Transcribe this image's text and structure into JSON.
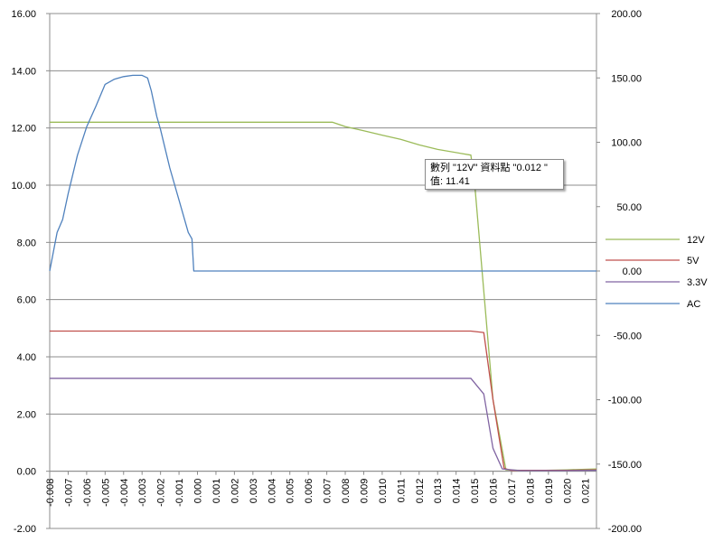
{
  "chart_data": {
    "type": "line",
    "x_ticks": [
      "-0.008",
      "-0.007",
      "-0.006",
      "-0.005",
      "-0.004",
      "-0.003",
      "-0.002",
      "-0.001",
      "0.000",
      "0.001",
      "0.002",
      "0.003",
      "0.004",
      "0.005",
      "0.006",
      "0.007",
      "0.008",
      "0.009",
      "0.010",
      "0.011",
      "0.012",
      "0.013",
      "0.014",
      "0.015",
      "0.016",
      "0.017",
      "0.018",
      "0.019",
      "0.020",
      "0.021"
    ],
    "xlim": [
      -0.008,
      0.0216
    ],
    "y_left": {
      "ylim": [
        -2,
        16
      ],
      "ticks": [
        "16.00",
        "14.00",
        "12.00",
        "10.00",
        "8.00",
        "6.00",
        "4.00",
        "2.00",
        "0.00",
        "-2.00"
      ]
    },
    "y_right": {
      "ylim": [
        -200,
        200
      ],
      "ticks": [
        "200.00",
        "150.00",
        "100.00",
        "50.00",
        "0.00",
        "-50.00",
        "-100.00",
        "-150.00",
        "-200.00"
      ]
    },
    "grid": true,
    "legend_position": "right",
    "series": [
      {
        "name": "12V",
        "color": "#9bbb59",
        "axis": "left",
        "x": [
          -0.008,
          0.0073,
          0.008,
          0.009,
          0.01,
          0.011,
          0.012,
          0.013,
          0.0148,
          0.015,
          0.016,
          0.0167,
          0.018,
          0.02,
          0.0216
        ],
        "y": [
          12.2,
          12.2,
          12.05,
          11.9,
          11.75,
          11.6,
          11.41,
          11.25,
          11.05,
          10.1,
          2.5,
          0.05,
          0.02,
          0.05,
          0.08
        ]
      },
      {
        "name": "5V",
        "color": "#c0504d",
        "axis": "left",
        "x": [
          -0.008,
          0.0148,
          0.0155,
          0.016,
          0.0166,
          0.017,
          0.02,
          0.0216
        ],
        "y": [
          4.9,
          4.9,
          4.85,
          2.5,
          0.1,
          0.03,
          0.03,
          0.05
        ]
      },
      {
        "name": "3.3V",
        "color": "#8064a2",
        "axis": "left",
        "x": [
          -0.008,
          0.0148,
          0.0155,
          0.016,
          0.0165,
          0.0175,
          0.02,
          0.0216
        ],
        "y": [
          3.25,
          3.25,
          2.7,
          0.8,
          0.08,
          0.02,
          0.02,
          0.03
        ]
      },
      {
        "name": "AC",
        "color": "#4f81bd",
        "axis": "right",
        "x": [
          -0.008,
          -0.0078,
          -0.0076,
          -0.0073,
          -0.007,
          -0.0065,
          -0.006,
          -0.0055,
          -0.005,
          -0.0045,
          -0.004,
          -0.0035,
          -0.003,
          -0.0027,
          -0.0025,
          -0.0022,
          -0.002,
          -0.0015,
          -0.001,
          -0.0005,
          -0.0003,
          -0.0002,
          0.0216
        ],
        "y": [
          0,
          15,
          30,
          40,
          60,
          90,
          112,
          128,
          145,
          149,
          151,
          152,
          152,
          150,
          140,
          120,
          110,
          80,
          55,
          30,
          25,
          0,
          0
        ]
      }
    ],
    "tooltip": {
      "line1": "數列 \"12V\" 資料點 \"0.012 \"",
      "line2": "值: 11.41"
    }
  }
}
